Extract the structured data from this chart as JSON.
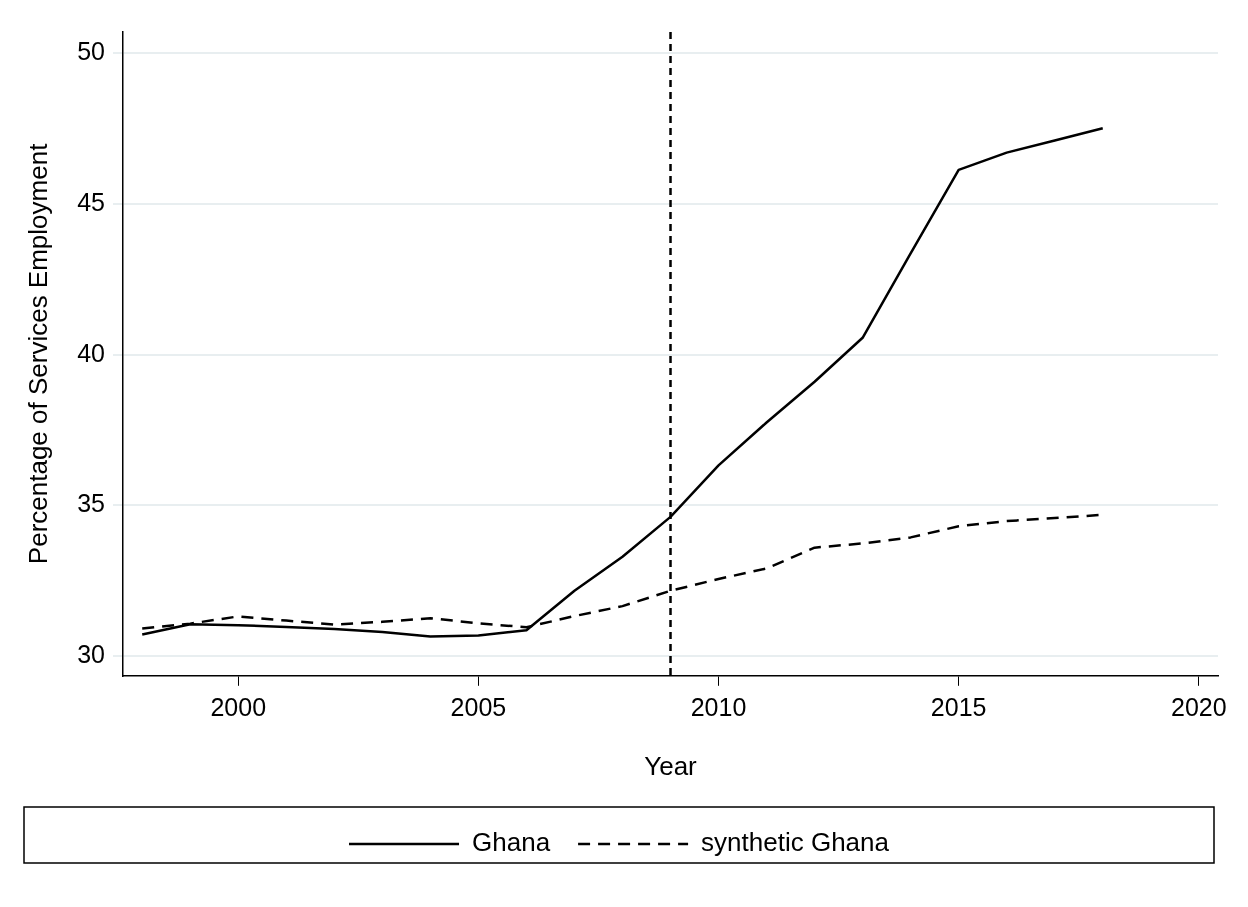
{
  "chart_data": {
    "type": "line",
    "xlabel": "Year",
    "ylabel": "Percentage of Services Employment",
    "x": [
      1998,
      1999,
      2000,
      2001,
      2002,
      2003,
      2004,
      2005,
      2006,
      2007,
      2008,
      2009,
      2010,
      2011,
      2012,
      2013,
      2014,
      2015,
      2016,
      2017,
      2018
    ],
    "series": [
      {
        "name": "Ghana",
        "color": "#000000",
        "line_style": "solid",
        "values": [
          30.72,
          31.06,
          31.03,
          30.97,
          30.9,
          30.8,
          30.65,
          30.69,
          30.86,
          32.17,
          33.3,
          34.62,
          36.33,
          37.75,
          39.1,
          40.56,
          43.36,
          46.13,
          46.7,
          47.1,
          47.51
        ]
      },
      {
        "name": "synthetic Ghana",
        "color": "#000000",
        "line_style": "dashed",
        "values": [
          30.92,
          31.08,
          31.32,
          31.18,
          31.05,
          31.14,
          31.26,
          31.09,
          30.96,
          31.33,
          31.66,
          32.17,
          32.56,
          32.91,
          33.6,
          33.74,
          33.94,
          34.31,
          34.48,
          34.58,
          34.69
        ]
      }
    ],
    "xlim": [
      1997.6,
      2020.4
    ],
    "xticks": [
      2000,
      2005,
      2010,
      2015,
      2020
    ],
    "ylim": [
      29.35,
      50.7
    ],
    "yticks": [
      30,
      35,
      40,
      45,
      50
    ],
    "ref_lines": [
      {
        "axis": "x",
        "value": 2009,
        "color": "#000000",
        "line_style": "dashed"
      }
    ],
    "grid": "y",
    "legend": "bottom",
    "marker": "none"
  }
}
